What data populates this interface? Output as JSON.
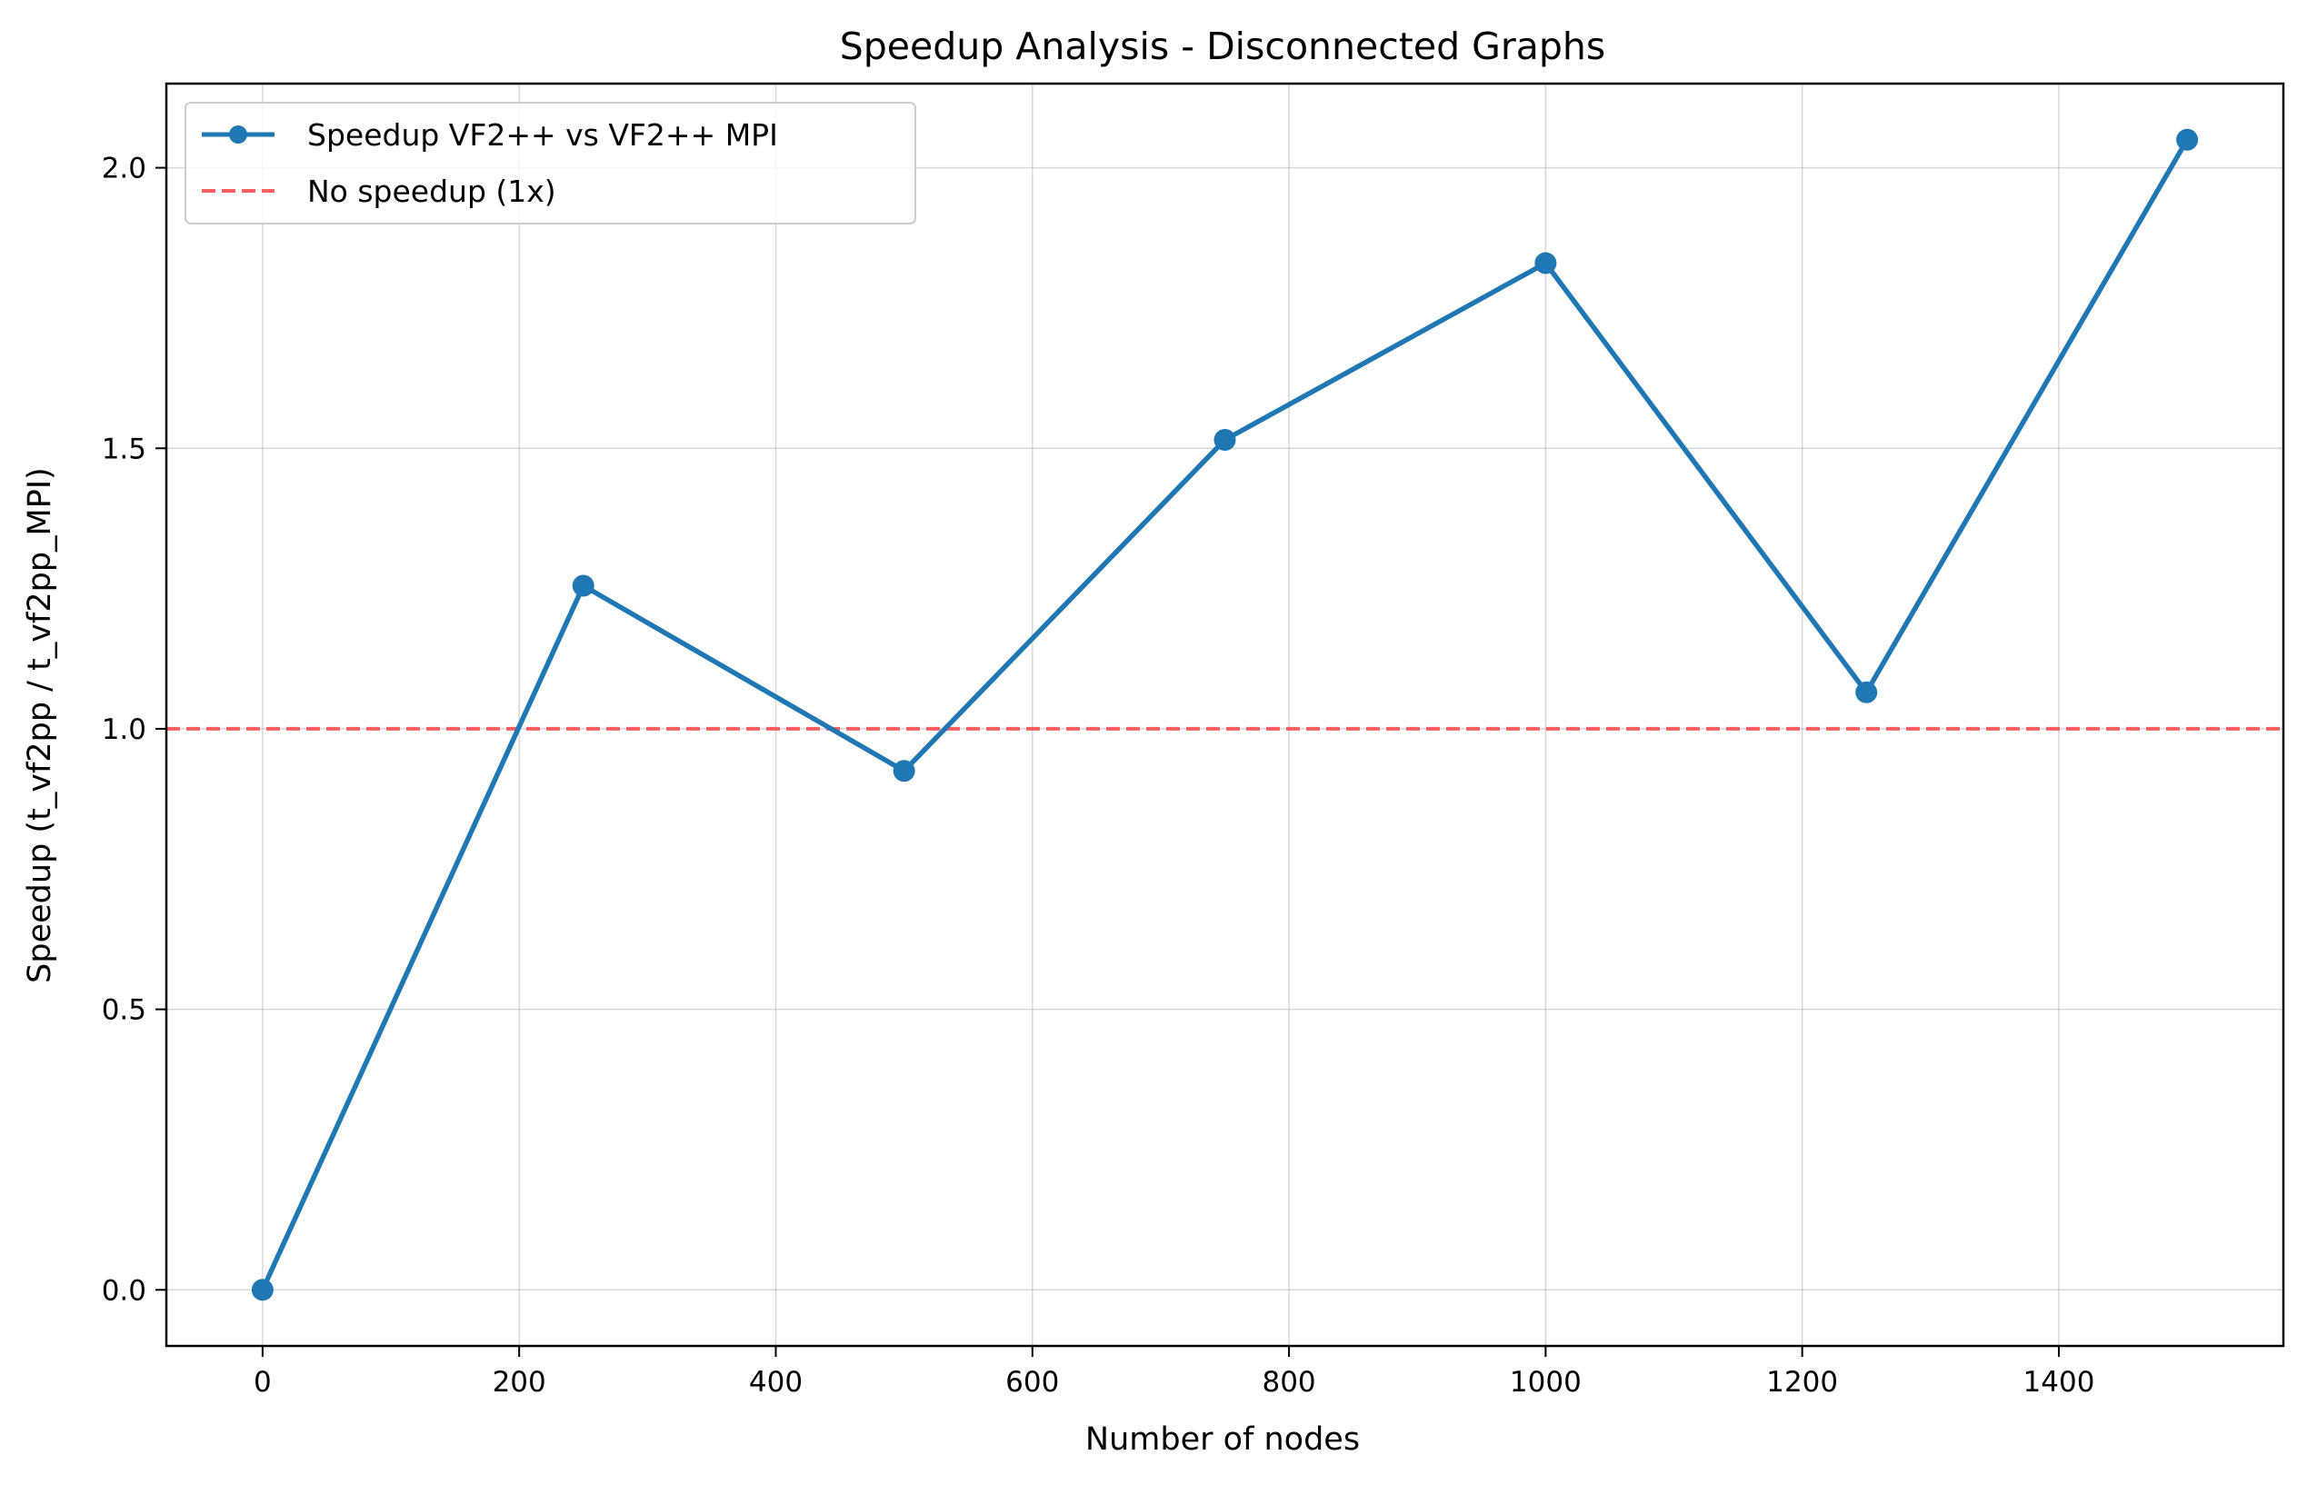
{
  "chart_data": {
    "type": "line",
    "title": "Speedup Analysis - Disconnected Graphs",
    "xlabel": "Number of nodes",
    "ylabel": "Speedup (t_vf2pp / t_vf2pp_MPI)",
    "xlim": [
      -75,
      1575
    ],
    "ylim": [
      -0.1,
      2.15
    ],
    "xticks": [
      0,
      200,
      400,
      600,
      800,
      1000,
      1200,
      1400
    ],
    "yticks": [
      0.0,
      0.5,
      1.0,
      1.5,
      2.0
    ],
    "xtick_labels": [
      "0",
      "200",
      "400",
      "600",
      "800",
      "1000",
      "1200",
      "1400"
    ],
    "ytick_labels": [
      "0.0",
      "0.5",
      "1.0",
      "1.5",
      "2.0"
    ],
    "grid": true,
    "legend_position": "top-left",
    "series": [
      {
        "name": "Speedup VF2++ vs VF2++ MPI",
        "color": "#1f77b4",
        "style": "solid",
        "marker": "circle",
        "x": [
          0,
          250,
          500,
          750,
          1000,
          1250,
          1500
        ],
        "y": [
          0.0,
          1.255,
          0.925,
          1.515,
          1.83,
          1.065,
          2.05
        ]
      }
    ],
    "reference_lines": [
      {
        "name": "No speedup (1x)",
        "orientation": "horizontal",
        "y": 1.0,
        "color": "#ff4444",
        "style": "dashed"
      }
    ]
  }
}
